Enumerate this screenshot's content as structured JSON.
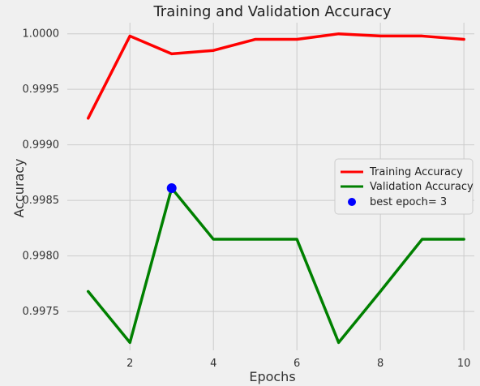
{
  "chart_data": {
    "type": "line",
    "title": "Training and Validation Accuracy",
    "xlabel": "Epochs",
    "ylabel": "Accuracy",
    "xlim": [
      0.5,
      10.25
    ],
    "ylim": [
      0.99715,
      1.0001
    ],
    "xticks": [
      2,
      4,
      6,
      8,
      10
    ],
    "yticks": [
      0.9975,
      0.998,
      0.9985,
      0.999,
      0.9995,
      1.0
    ],
    "ytick_labels": [
      "0.9975",
      "0.9980",
      "0.9985",
      "0.9990",
      "0.9995",
      "1.0000"
    ],
    "grid": true,
    "legend_position": "center-right",
    "x": [
      1,
      2,
      3,
      4,
      5,
      6,
      7,
      8,
      9,
      10
    ],
    "series": [
      {
        "name": "Training Accuracy",
        "color": "#ff0000",
        "values": [
          0.99924,
          0.99998,
          0.99982,
          0.99985,
          0.99995,
          0.99995,
          1.0,
          0.99998,
          0.99998,
          0.99995
        ]
      },
      {
        "name": "Validation Accuracy",
        "color": "#008000",
        "values": [
          0.99768,
          0.99722,
          0.99861,
          0.99815,
          0.99815,
          0.99815,
          0.99722,
          0.99768,
          0.99815,
          0.99815
        ]
      }
    ],
    "highlight": {
      "name": "best epoch= 3",
      "color": "#0000ff",
      "x": 3,
      "y": 0.99861
    }
  }
}
